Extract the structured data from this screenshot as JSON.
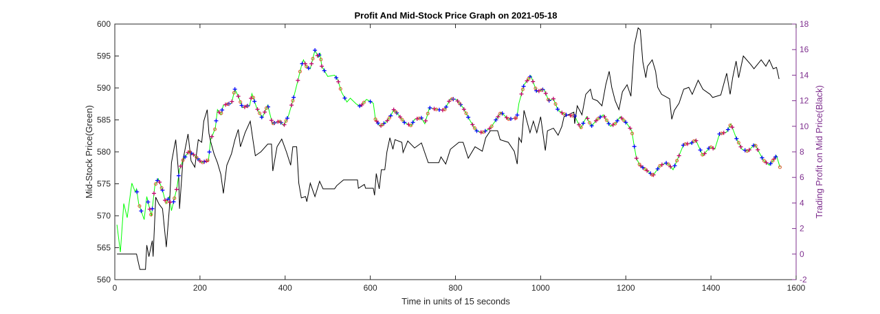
{
  "chart_data": {
    "type": "line",
    "title": "Profit And Mid-Stock Price Graph on 2021-05-18",
    "xlabel": "Time in units of 15 seconds",
    "ylabel_left": "Mid-Stock Price(Green)",
    "ylabel_right": "Trading Profit on Mid Price(Black)",
    "xlim": [
      0,
      1600
    ],
    "ylim_left": [
      560,
      600
    ],
    "ylim_right": [
      -2,
      18
    ],
    "xticks": [
      "0",
      "200",
      "400",
      "600",
      "800",
      "1000",
      "1200",
      "1400",
      "1600"
    ],
    "yticks_left": [
      "560",
      "565",
      "570",
      "575",
      "580",
      "585",
      "590",
      "595",
      "600"
    ],
    "yticks_right": [
      "-2",
      "0",
      "2",
      "4",
      "6",
      "8",
      "10",
      "12",
      "14",
      "16",
      "18"
    ],
    "grid": false,
    "colors": {
      "mid_price": "#00ff00",
      "profit": "#000000",
      "right_axis": "#7e2f8e",
      "marker_blue": "#0000ff",
      "marker_red": "#c0006a",
      "marker_circle": "#e0502a"
    },
    "series": [
      {
        "axis": "left",
        "color": "#00ff00",
        "x": [
          5,
          13,
          21,
          29,
          40,
          48,
          51,
          56,
          69,
          75,
          86,
          94,
          102,
          112,
          120,
          128,
          133,
          146,
          152,
          160,
          174,
          188,
          204,
          220,
          225,
          236,
          241,
          249,
          255,
          274,
          282,
          290,
          300,
          317,
          322,
          333,
          346,
          359,
          370,
          387,
          397,
          408,
          418,
          429,
          438,
          443,
          451,
          459,
          470,
          478,
          482,
          486,
          500,
          516,
          524,
          532,
          545,
          553,
          567,
          577,
          591,
          607,
          612,
          623,
          639,
          647,
          655,
          666,
          680,
          696,
          704,
          720,
          728,
          739,
          758,
          774,
          788,
          802,
          818,
          835,
          849,
          863,
          882,
          896,
          907,
          924,
          944,
          949,
          961,
          977,
          991,
          1008,
          1019,
          1030,
          1041,
          1058,
          1080,
          1094,
          1108,
          1119,
          1133,
          1147,
          1164,
          1175,
          1187,
          1203,
          1214,
          1219,
          1225,
          1233,
          1247,
          1264,
          1281,
          1297,
          1311,
          1325,
          1336,
          1353,
          1364,
          1381,
          1398,
          1409,
          1420,
          1437,
          1447,
          1459,
          1473,
          1487,
          1503,
          1523,
          1537,
          1554,
          1562
        ],
        "y": [
          568.6,
          564.3,
          571.9,
          569.7,
          575.1,
          573.7,
          574.2,
          571.9,
          569.4,
          573,
          569.9,
          574.7,
          575.8,
          574,
          571.9,
          573,
          570.8,
          574.4,
          577.2,
          578.7,
          580.1,
          579.4,
          578.3,
          578.7,
          581.9,
          583.7,
          586.6,
          585.8,
          587.3,
          587.6,
          589.8,
          588.7,
          586.9,
          587.3,
          589.1,
          586.9,
          585.3,
          587.3,
          584.4,
          584.8,
          584.1,
          585.7,
          588,
          590.9,
          593.4,
          594.4,
          593.2,
          593,
          595.9,
          594.8,
          595.5,
          593.4,
          591.8,
          592,
          591.2,
          589.4,
          587.8,
          588.4,
          587.5,
          587.1,
          588.2,
          587.6,
          585.1,
          584,
          584.8,
          585.5,
          586.6,
          585.8,
          584.6,
          584.1,
          585.1,
          585.3,
          584.4,
          586.9,
          586.6,
          586.5,
          588.3,
          588.2,
          586.9,
          584.8,
          583.3,
          583,
          583.7,
          585.1,
          586.2,
          585.1,
          585.3,
          587.6,
          590.5,
          591.9,
          589.4,
          589.8,
          588,
          588.3,
          586.5,
          585.8,
          585.6,
          583.7,
          585.5,
          584,
          585.1,
          585.8,
          584,
          584.4,
          585.5,
          584.4,
          583.3,
          581.2,
          579,
          577.9,
          577.2,
          576.3,
          577.9,
          578.3,
          577.2,
          579.4,
          581.2,
          581.3,
          581.9,
          579.4,
          580.8,
          580.4,
          582.8,
          583.1,
          584.4,
          582.2,
          580.4,
          580.1,
          581.2,
          578.7,
          577.9,
          579.4,
          577.6
        ]
      },
      {
        "axis": "right",
        "color": "#000000",
        "x": [
          5,
          51,
          54,
          59,
          72,
          75,
          80,
          88,
          90,
          96,
          104,
          112,
          121,
          128,
          133,
          139,
          143,
          150,
          152,
          160,
          172,
          179,
          188,
          196,
          204,
          209,
          217,
          221,
          225,
          233,
          241,
          249,
          255,
          263,
          274,
          282,
          290,
          295,
          306,
          318,
          325,
          330,
          343,
          359,
          368,
          371,
          381,
          392,
          403,
          413,
          418,
          427,
          432,
          438,
          448,
          451,
          459,
          470,
          481,
          489,
          516,
          521,
          537,
          570,
          572,
          586,
          589,
          607,
          610,
          614,
          621,
          626,
          634,
          639,
          646,
          653,
          658,
          674,
          677,
          688,
          704,
          720,
          736,
          761,
          766,
          777,
          788,
          808,
          818,
          830,
          846,
          863,
          871,
          882,
          899,
          905,
          924,
          938,
          945,
          949,
          955,
          961,
          975,
          983,
          991,
          1000,
          1011,
          1016,
          1030,
          1041,
          1050,
          1055,
          1078,
          1080,
          1086,
          1097,
          1106,
          1117,
          1122,
          1133,
          1144,
          1153,
          1161,
          1167,
          1175,
          1184,
          1192,
          1203,
          1212,
          1220,
          1229,
          1234,
          1240,
          1247,
          1251,
          1262,
          1270,
          1275,
          1284,
          1303,
          1308,
          1314,
          1325,
          1336,
          1348,
          1356,
          1370,
          1381,
          1398,
          1404,
          1423,
          1437,
          1445,
          1451,
          1459,
          1465,
          1476,
          1493,
          1501,
          1518,
          1529,
          1537,
          1546,
          1554,
          1560
        ],
        "y": [
          0,
          0,
          -0.45,
          -1.2,
          -1.2,
          0.7,
          -0.2,
          1.05,
          -0.2,
          4.45,
          3.9,
          3.55,
          0.55,
          3.55,
          7.15,
          8.25,
          8.95,
          6.25,
          3.55,
          7.35,
          9.4,
          7.3,
          6.8,
          8.95,
          8.75,
          10.4,
          11.3,
          9.45,
          8.8,
          7.85,
          7.15,
          6.25,
          4.75,
          6.95,
          7.85,
          8.95,
          9.75,
          8.4,
          9.5,
          10.4,
          8.8,
          7.7,
          8.0,
          8.6,
          8.6,
          6.5,
          8.4,
          9.0,
          8.0,
          6.95,
          8.4,
          8.4,
          5.55,
          4.4,
          4.5,
          4.1,
          5.55,
          4.5,
          5.7,
          5.1,
          5.1,
          5.35,
          5.8,
          5.8,
          5.15,
          5.45,
          5.15,
          5.15,
          4.6,
          6.3,
          5.1,
          6.6,
          6.6,
          8.0,
          9.1,
          8.2,
          8.95,
          8.75,
          7.95,
          8.85,
          8.3,
          8.7,
          7.15,
          7.15,
          7.6,
          7.05,
          8.2,
          8.75,
          8.75,
          7.5,
          8.4,
          8.05,
          9.1,
          9.65,
          9.65,
          8.95,
          8.75,
          8.05,
          7.05,
          9.1,
          8.75,
          11.25,
          9.5,
          10.4,
          9.5,
          10.75,
          8.1,
          9.65,
          9.85,
          9.3,
          10.0,
          10.75,
          11.1,
          10.2,
          11.6,
          10.9,
          12.5,
          12.9,
          12.15,
          12.0,
          11.6,
          13.25,
          14.3,
          13.05,
          12.0,
          11.3,
          12.7,
          13.25,
          12.35,
          16.3,
          17.7,
          17.55,
          15.05,
          13.8,
          14.7,
          15.2,
          14.3,
          13.05,
          12.5,
          12.15,
          10.55,
          11.25,
          11.8,
          12.9,
          13.05,
          12.5,
          13.6,
          12.9,
          12.5,
          12.25,
          12.45,
          14.15,
          12.5,
          13.8,
          15.1,
          13.8,
          15.5,
          14.85,
          14.5,
          15.2,
          14.7,
          15.2,
          14.5,
          14.6,
          13.7
        ]
      }
    ],
    "markers": [
      {
        "symbol": "+",
        "color": "#0000ff",
        "on": "mid_price",
        "x": [
          52,
          62,
          78,
          88,
          100,
          112,
          125,
          138,
          150,
          165,
          180,
          195,
          210,
          222,
          238,
          252,
          268,
          282,
          298,
          312,
          328,
          345,
          360,
          375,
          390,
          405,
          420,
          440,
          455,
          470,
          480,
          492,
          520,
          540,
          575,
          600,
          618,
          632,
          648,
          662,
          680,
          700,
          720,
          740,
          762,
          778,
          795,
          812,
          830,
          850,
          870,
          895,
          910,
          930,
          945,
          960,
          975,
          990,
          1005,
          1020,
          1040,
          1060,
          1080,
          1100,
          1120,
          1140,
          1160,
          1180,
          1200,
          1220,
          1240,
          1258,
          1275,
          1295,
          1315,
          1335,
          1355,
          1375,
          1395,
          1420,
          1440,
          1460,
          1480,
          1500,
          1520,
          1540,
          1552
        ]
      },
      {
        "symbol": "+",
        "color": "#c0006a",
        "on": "mid_price",
        "x": [
          82,
          92,
          105,
          118,
          130,
          145,
          155,
          172,
          185,
          200,
          215,
          228,
          245,
          260,
          275,
          290,
          305,
          320,
          335,
          352,
          368,
          383,
          398,
          415,
          430,
          447,
          462,
          476,
          486,
          525,
          580,
          615,
          625,
          640,
          655,
          670,
          690,
          710,
          730,
          750,
          770,
          785,
          805,
          820,
          840,
          860,
          880,
          900,
          920,
          940,
          955,
          968,
          982,
          996,
          1012,
          1030,
          1050,
          1070,
          1090,
          1110,
          1130,
          1150,
          1170,
          1190,
          1210,
          1225,
          1235,
          1250,
          1265,
          1285,
          1305,
          1325,
          1345,
          1365,
          1385,
          1405,
          1430,
          1450,
          1470,
          1490,
          1510,
          1530,
          1548
        ]
      },
      {
        "symbol": "o",
        "color": "#e0502a",
        "on": "mid_price",
        "x": [
          58,
          85,
          96,
          110,
          122,
          140,
          160,
          176,
          192,
          206,
          218,
          235,
          250,
          265,
          280,
          295,
          310,
          325,
          340,
          356,
          372,
          388,
          402,
          418,
          435,
          450,
          465,
          484,
          530,
          585,
          612,
          628,
          645,
          660,
          675,
          695,
          715,
          735,
          755,
          775,
          792,
          810,
          825,
          845,
          865,
          885,
          905,
          925,
          942,
          958,
          972,
          988,
          1002,
          1018,
          1035,
          1055,
          1075,
          1095,
          1115,
          1135,
          1155,
          1175,
          1195,
          1215,
          1232,
          1245,
          1262,
          1280,
          1300,
          1320,
          1340,
          1360,
          1380,
          1400,
          1425,
          1445,
          1465,
          1485,
          1505,
          1525,
          1545,
          1562
        ]
      }
    ]
  }
}
